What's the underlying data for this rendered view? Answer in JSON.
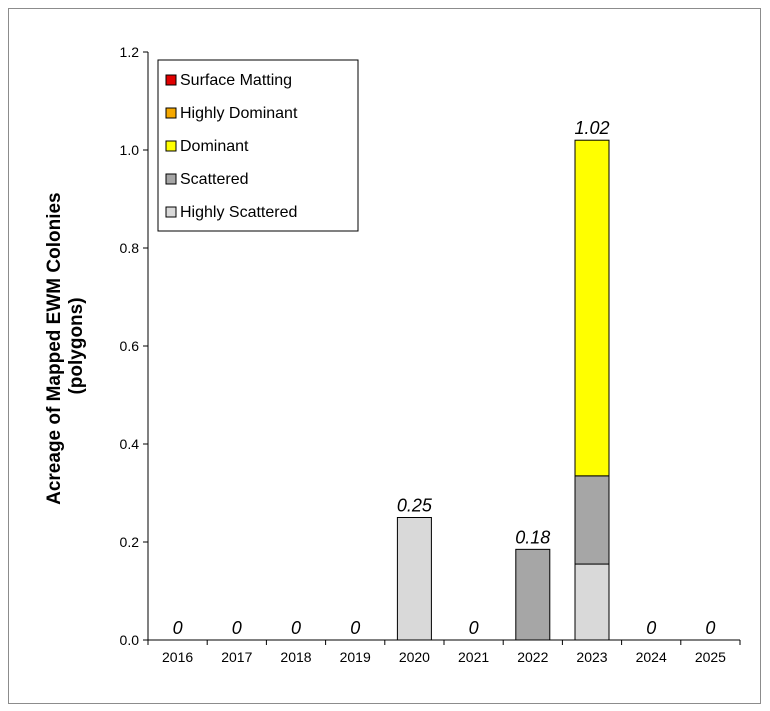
{
  "chart_data": {
    "type": "bar",
    "stacked": true,
    "title": "",
    "xlabel": "",
    "ylabel_lines": [
      "Acreage of Mapped EWM Colonies",
      "(polygons)"
    ],
    "ylim": [
      0,
      1.2
    ],
    "yticks": [
      "0.0",
      "0.2",
      "0.4",
      "0.6",
      "0.8",
      "1.0",
      "1.2"
    ],
    "categories": [
      "2016",
      "2017",
      "2018",
      "2019",
      "2020",
      "2021",
      "2022",
      "2023",
      "2024",
      "2025"
    ],
    "series": [
      {
        "name": "Highly Scattered",
        "color": "#d9d9d9",
        "values": [
          0,
          0,
          0,
          0,
          0.25,
          0,
          0,
          0.155,
          0,
          0
        ]
      },
      {
        "name": "Scattered",
        "color": "#a6a6a6",
        "values": [
          0,
          0,
          0,
          0,
          0,
          0,
          0.185,
          0.18,
          0,
          0
        ]
      },
      {
        "name": "Dominant",
        "color": "#ffff00",
        "values": [
          0,
          0,
          0,
          0,
          0,
          0,
          0,
          0.685,
          0,
          0
        ]
      },
      {
        "name": "Highly Dominant",
        "color": "#f5a800",
        "values": [
          0,
          0,
          0,
          0,
          0,
          0,
          0,
          0,
          0,
          0
        ]
      },
      {
        "name": "Surface Matting",
        "color": "#e00000",
        "values": [
          0,
          0,
          0,
          0,
          0,
          0,
          0,
          0,
          0,
          0
        ]
      }
    ],
    "totals_labels": [
      "0",
      "0",
      "0",
      "0",
      "0.25",
      "0",
      "0.18",
      "1.02",
      "0",
      "0"
    ],
    "legend": {
      "placement": "top-left",
      "order": [
        "Surface Matting",
        "Highly Dominant",
        "Dominant",
        "Scattered",
        "Highly Scattered"
      ]
    },
    "grid": false
  }
}
